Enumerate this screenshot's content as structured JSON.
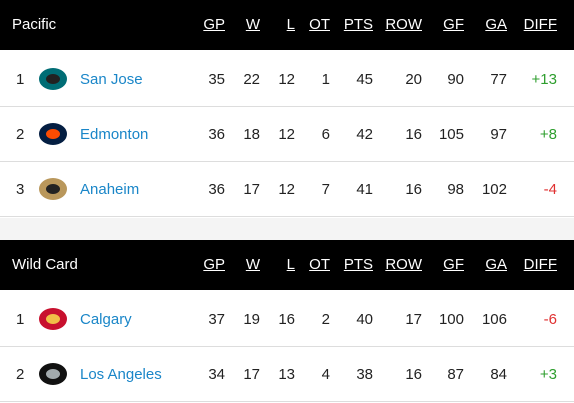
{
  "sections": [
    {
      "title": "Pacific",
      "columns": [
        "GP",
        "W",
        "L",
        "OT",
        "PTS",
        "ROW",
        "GF",
        "GA",
        "DIFF"
      ],
      "rows": [
        {
          "rank": 1,
          "team": "San Jose",
          "stats": [
            35,
            22,
            12,
            1,
            45,
            20,
            90,
            77
          ],
          "diff": "+13"
        },
        {
          "rank": 2,
          "team": "Edmonton",
          "stats": [
            36,
            18,
            12,
            6,
            42,
            16,
            105,
            97
          ],
          "diff": "+8"
        },
        {
          "rank": 3,
          "team": "Anaheim",
          "stats": [
            36,
            17,
            12,
            7,
            41,
            16,
            98,
            102
          ],
          "diff": "-4"
        }
      ]
    },
    {
      "title": "Wild Card",
      "columns": [
        "GP",
        "W",
        "L",
        "OT",
        "PTS",
        "ROW",
        "GF",
        "GA",
        "DIFF"
      ],
      "rows": [
        {
          "rank": 1,
          "team": "Calgary",
          "stats": [
            37,
            19,
            16,
            2,
            40,
            17,
            100,
            106
          ],
          "diff": "-6"
        },
        {
          "rank": 2,
          "team": "Los Angeles",
          "stats": [
            34,
            17,
            13,
            4,
            38,
            16,
            87,
            84
          ],
          "diff": "+3"
        }
      ]
    }
  ]
}
